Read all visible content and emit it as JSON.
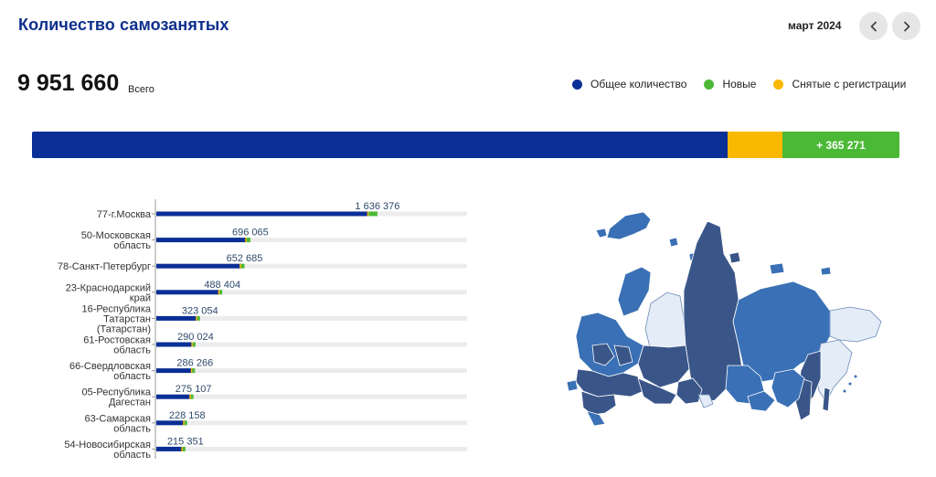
{
  "header": {
    "title": "Количество самозанятых",
    "period": "март 2024"
  },
  "summary": {
    "total": "9 951 660",
    "total_label": "Всего",
    "new_label": "+ 365 271",
    "shares": {
      "total": 0.802,
      "removed": 0.063,
      "new": 0.135
    }
  },
  "legend": [
    {
      "label": "Общее количество",
      "color": "#0a2f96"
    },
    {
      "label": "Новые",
      "color": "#4bb935"
    },
    {
      "label": "Снятые с регистрации",
      "color": "#fbb800"
    }
  ],
  "colors": {
    "total": "#0a2f96",
    "new": "#4bb935",
    "removed": "#fbb800",
    "track": "#ececec",
    "axis": "#999999",
    "map_dark": "#3a5689",
    "map_mid": "#3a70b5",
    "map_light": "#e3ecf7"
  },
  "icons": {
    "prev": "chevron-left-icon",
    "next": "chevron-right-icon"
  },
  "chart_data": {
    "type": "bar",
    "orientation": "horizontal",
    "xlim": [
      0,
      2300000
    ],
    "grid": false,
    "categories": [
      [
        "77-г.Москва"
      ],
      [
        "50-Московская",
        "область"
      ],
      [
        "78-Санкт-Петербург"
      ],
      [
        "23-Краснодарский",
        "край"
      ],
      [
        "16-Республика",
        "Татарстан",
        "(Татарстан)"
      ],
      [
        "61-Ростовская",
        "область"
      ],
      [
        "66-Свердловская",
        "область"
      ],
      [
        "05-Республика",
        "Дагестан"
      ],
      [
        "63-Самарская",
        "область"
      ],
      [
        "54-Новосибирская",
        "область"
      ]
    ],
    "series": [
      {
        "values": [
          1636376,
          696065,
          652685,
          488404,
          323054,
          290024,
          286266,
          275107,
          228158,
          215351
        ]
      }
    ],
    "value_labels": [
      "1 636 376",
      "696 065",
      "652 685",
      "488 404",
      "323 054",
      "290 024",
      "286 266",
      "275 107",
      "228 158",
      "215 351"
    ]
  }
}
